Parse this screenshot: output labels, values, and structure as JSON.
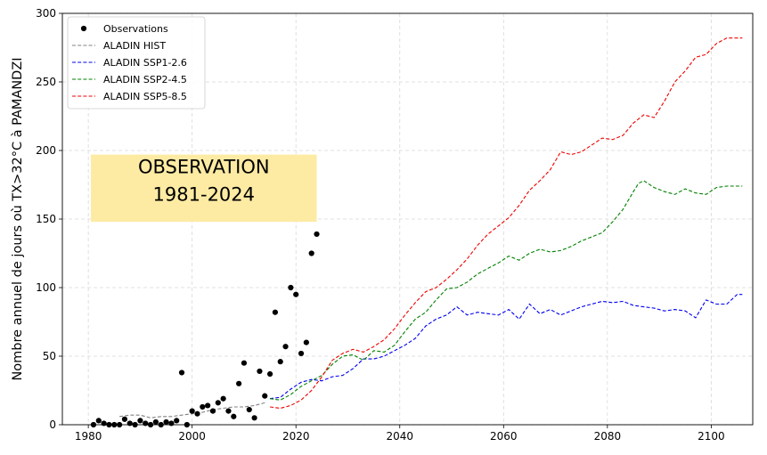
{
  "chart_data": {
    "type": "line",
    "title": "",
    "xlabel": "",
    "ylabel": "Nombre annuel de jours où TX>32°C à PAMANDZI",
    "xlim": [
      1975,
      2108
    ],
    "ylim": [
      0,
      300
    ],
    "xticks": [
      1980,
      2000,
      2020,
      2040,
      2060,
      2080,
      2100
    ],
    "yticks": [
      0,
      50,
      100,
      150,
      200,
      250,
      300
    ],
    "grid": true,
    "legend_position": "top-left",
    "annotation": {
      "line1": "OBSERVATION",
      "line2": "1981-2024",
      "x_range": [
        1980.5,
        2024
      ],
      "y_range": [
        148,
        197
      ],
      "color": "#fdeba3"
    },
    "observations": {
      "name": "Observations",
      "color": "#000000",
      "x": [
        1981,
        1982,
        1983,
        1984,
        1985,
        1986,
        1987,
        1988,
        1989,
        1990,
        1991,
        1992,
        1993,
        1994,
        1995,
        1996,
        1997,
        1998,
        1999,
        2000,
        2001,
        2002,
        2003,
        2004,
        2005,
        2006,
        2007,
        2008,
        2009,
        2010,
        2011,
        2012,
        2013,
        2014,
        2015,
        2016,
        2017,
        2018,
        2019,
        2020,
        2021,
        2022,
        2023,
        2024
      ],
      "y": [
        0,
        3,
        1,
        0,
        0,
        0,
        4,
        1,
        0,
        3,
        1,
        0,
        2,
        0,
        2,
        1,
        3,
        38,
        0,
        10,
        8,
        13,
        14,
        10,
        16,
        19,
        10,
        6,
        30,
        45,
        11,
        5,
        39,
        21,
        37,
        82,
        46,
        57,
        100,
        95,
        52,
        60,
        125,
        139
      ]
    },
    "series": [
      {
        "name": "ALADIN HIST",
        "color": "#808080",
        "x": [
          1986,
          1988,
          1990,
          1992,
          1994,
          1996,
          1998,
          2000,
          2002,
          2004,
          2006,
          2008,
          2010,
          2012,
          2014
        ],
        "y": [
          6,
          7,
          7,
          5,
          6,
          6,
          7,
          8,
          9,
          11,
          12,
          13,
          13,
          14,
          16
        ]
      },
      {
        "name": "ALADIN SSP1-2.6",
        "color": "#0000ee",
        "x": [
          2015,
          2017,
          2019,
          2021,
          2023,
          2025,
          2027,
          2029,
          2031,
          2033,
          2035,
          2037,
          2039,
          2041,
          2043,
          2045,
          2047,
          2049,
          2051,
          2053,
          2055,
          2057,
          2059,
          2061,
          2063,
          2065,
          2067,
          2069,
          2071,
          2073,
          2075,
          2077,
          2079,
          2081,
          2083,
          2085,
          2087,
          2089,
          2091,
          2093,
          2095,
          2097,
          2099,
          2101,
          2103,
          2105,
          2106
        ],
        "y": [
          19,
          20,
          26,
          31,
          33,
          32,
          35,
          36,
          41,
          48,
          48,
          50,
          54,
          58,
          63,
          72,
          77,
          80,
          86,
          80,
          82,
          81,
          80,
          84,
          77,
          88,
          81,
          84,
          80,
          83,
          86,
          88,
          90,
          89,
          90,
          87,
          86,
          85,
          83,
          84,
          83,
          78,
          91,
          88,
          88,
          95,
          95
        ]
      },
      {
        "name": "ALADIN SSP2-4.5",
        "color": "#008000",
        "x": [
          2015,
          2017,
          2019,
          2021,
          2023,
          2025,
          2027,
          2029,
          2031,
          2033,
          2035,
          2037,
          2039,
          2041,
          2043,
          2045,
          2047,
          2049,
          2051,
          2053,
          2055,
          2057,
          2059,
          2061,
          2063,
          2065,
          2067,
          2069,
          2071,
          2073,
          2075,
          2077,
          2079,
          2081,
          2083,
          2085,
          2086,
          2087,
          2089,
          2091,
          2093,
          2095,
          2097,
          2099,
          2101,
          2103,
          2105,
          2106
        ],
        "y": [
          19,
          18,
          22,
          28,
          32,
          36,
          44,
          50,
          51,
          47,
          54,
          53,
          58,
          68,
          77,
          82,
          91,
          99,
          100,
          104,
          110,
          114,
          118,
          123,
          120,
          125,
          128,
          126,
          127,
          130,
          134,
          137,
          140,
          148,
          157,
          170,
          176,
          178,
          173,
          170,
          168,
          172,
          169,
          168,
          173,
          174,
          174,
          174
        ]
      },
      {
        "name": "ALADIN SSP5-8.5",
        "color": "#ee0000",
        "x": [
          2015,
          2017,
          2019,
          2021,
          2023,
          2025,
          2027,
          2029,
          2031,
          2033,
          2035,
          2037,
          2039,
          2041,
          2043,
          2045,
          2047,
          2049,
          2051,
          2053,
          2055,
          2057,
          2059,
          2061,
          2063,
          2065,
          2067,
          2069,
          2071,
          2073,
          2075,
          2077,
          2079,
          2081,
          2083,
          2085,
          2087,
          2089,
          2091,
          2093,
          2095,
          2097,
          2099,
          2101,
          2103,
          2105,
          2106
        ],
        "y": [
          13,
          12,
          14,
          18,
          25,
          35,
          47,
          52,
          55,
          53,
          57,
          62,
          70,
          80,
          89,
          97,
          100,
          106,
          113,
          121,
          131,
          139,
          145,
          151,
          160,
          171,
          178,
          186,
          199,
          197,
          199,
          204,
          209,
          208,
          211,
          220,
          226,
          224,
          236,
          250,
          258,
          268,
          270,
          278,
          282,
          282,
          282
        ]
      }
    ]
  }
}
